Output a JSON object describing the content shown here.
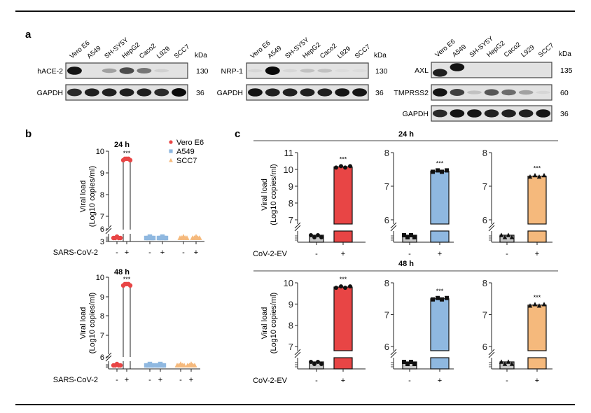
{
  "panel_labels": {
    "a": "a",
    "b": "b",
    "c": "c"
  },
  "western_blots": {
    "lanes": [
      "Vero E6",
      "A549",
      "SH-SY5Y",
      "HepG2",
      "Caco2",
      "L929",
      "SCC7"
    ],
    "kda_label": "kDa",
    "blots": [
      {
        "rows": [
          {
            "protein": "hACE-2",
            "kda": "130",
            "intensity": [
              0.95,
              0.0,
              0.3,
              0.7,
              0.5,
              0.08,
              0.0
            ]
          },
          {
            "protein": "GAPDH",
            "kda": "36",
            "intensity": [
              0.85,
              0.9,
              0.9,
              0.9,
              0.9,
              0.85,
              1.0
            ]
          }
        ]
      },
      {
        "rows": [
          {
            "protein": "NRP-1",
            "kda": "130",
            "intensity": [
              0.05,
              1.0,
              0.05,
              0.15,
              0.15,
              0.03,
              0.03
            ]
          },
          {
            "protein": "GAPDH",
            "kda": "36",
            "intensity": [
              0.95,
              0.9,
              0.9,
              0.9,
              0.9,
              0.95,
              0.95
            ]
          }
        ]
      },
      {
        "rows": [
          {
            "protein": "AXL",
            "kda": "135",
            "intensity": [
              0.9,
              0.95,
              0.0,
              0.0,
              0.0,
              0.0,
              0.0
            ]
          },
          {
            "protein": "TMPRSS2",
            "kda": "60",
            "intensity": [
              0.95,
              0.75,
              0.15,
              0.65,
              0.55,
              0.3,
              0.05
            ]
          },
          {
            "protein": "GAPDH",
            "kda": "36",
            "intensity": [
              0.85,
              0.95,
              0.95,
              0.9,
              0.9,
              0.9,
              0.95
            ]
          }
        ]
      }
    ]
  },
  "chart_data": [
    {
      "type": "scatter",
      "panel": "b",
      "title": "24 h",
      "ylabel": [
        "Viral load",
        "(Log10 copies/ml)"
      ],
      "xlabel": "SARS-CoV-2",
      "yticks": [
        "3",
        "6",
        "7",
        "8",
        "9",
        "10"
      ],
      "ylim": [
        3,
        10
      ],
      "y_axis_break": true,
      "categories": [
        "-",
        "+",
        "-",
        "+",
        "-",
        "+"
      ],
      "legend": [
        "Vero E6",
        "A549",
        "SCC7"
      ],
      "legend_position": "top-right",
      "series": [
        {
          "name": "Vero E6",
          "color": "#e84545",
          "marker": "circle",
          "values": [
            3.2,
            9.65
          ]
        },
        {
          "name": "A549",
          "color": "#8fb8e0",
          "marker": "square",
          "values": [
            3.3,
            3.3
          ]
        },
        {
          "name": "SCC7",
          "color": "#f5b97c",
          "marker": "triangle",
          "values": [
            3.3,
            3.25
          ]
        }
      ],
      "significance": "***"
    },
    {
      "type": "scatter",
      "panel": "b",
      "title": "48 h",
      "ylabel": [
        "Viral load",
        "(Log10 copies/ml)"
      ],
      "xlabel": "SARS-CoV-2",
      "yticks": [
        "6",
        "7",
        "8",
        "9",
        "10"
      ],
      "ylim": [
        5.5,
        10
      ],
      "y_axis_break": true,
      "categories": [
        "-",
        "+",
        "-",
        "+",
        "-",
        "+"
      ],
      "series": [
        {
          "name": "Vero E6",
          "color": "#e84545",
          "marker": "circle",
          "values": [
            5.65,
            9.65
          ]
        },
        {
          "name": "A549",
          "color": "#8fb8e0",
          "marker": "square",
          "values": [
            5.65,
            5.68
          ]
        },
        {
          "name": "SCC7",
          "color": "#f5b97c",
          "marker": "triangle",
          "values": [
            5.65,
            5.65
          ]
        }
      ],
      "significance": "***"
    },
    {
      "type": "bar",
      "panel": "c",
      "row_title": "24 h",
      "ylabel": [
        "Viral load",
        "(Log10 copies/ml)"
      ],
      "xlabel": "CoV-2-EV",
      "charts": [
        {
          "cell": "Vero E6",
          "color": "#e84545",
          "marker": "circle",
          "yticks": [
            "7",
            "8",
            "9",
            "10",
            "11"
          ],
          "ylim": [
            6.0,
            11
          ],
          "categories": [
            "-",
            "+"
          ],
          "values": [
            6.1,
            10.15
          ],
          "significance": "***"
        },
        {
          "cell": "A549",
          "color": "#8fb8e0",
          "marker": "square",
          "yticks": [
            "6",
            "7",
            "8"
          ],
          "ylim": [
            5.0,
            8
          ],
          "categories": [
            "-",
            "+"
          ],
          "values": [
            5.1,
            7.45
          ],
          "significance": "***"
        },
        {
          "cell": "SCC7",
          "color": "#f5b97c",
          "marker": "triangle",
          "yticks": [
            "6",
            "7",
            "8"
          ],
          "ylim": [
            5.0,
            8
          ],
          "categories": [
            "-",
            "+"
          ],
          "values": [
            5.15,
            7.3
          ],
          "significance": "***"
        }
      ]
    },
    {
      "type": "bar",
      "panel": "c",
      "row_title": "48 h",
      "ylabel": [
        "Viral load",
        "(Log10 copies/ml)"
      ],
      "xlabel": "CoV-2-EV",
      "charts": [
        {
          "cell": "Vero E6",
          "color": "#e84545",
          "marker": "circle",
          "yticks": [
            "7",
            "8",
            "9",
            "10"
          ],
          "ylim": [
            6.0,
            10
          ],
          "categories": [
            "-",
            "+"
          ],
          "values": [
            6.15,
            9.8
          ],
          "significance": "***"
        },
        {
          "cell": "A549",
          "color": "#8fb8e0",
          "marker": "square",
          "yticks": [
            "6",
            "7",
            "8"
          ],
          "ylim": [
            5.0,
            8
          ],
          "categories": [
            "-",
            "+"
          ],
          "values": [
            5.1,
            7.5
          ],
          "significance": "***"
        },
        {
          "cell": "SCC7",
          "color": "#f5b97c",
          "marker": "triangle",
          "yticks": [
            "6",
            "7",
            "8"
          ],
          "ylim": [
            5.0,
            8
          ],
          "categories": [
            "-",
            "+"
          ],
          "values": [
            5.1,
            7.3
          ],
          "significance": "***"
        }
      ]
    }
  ]
}
